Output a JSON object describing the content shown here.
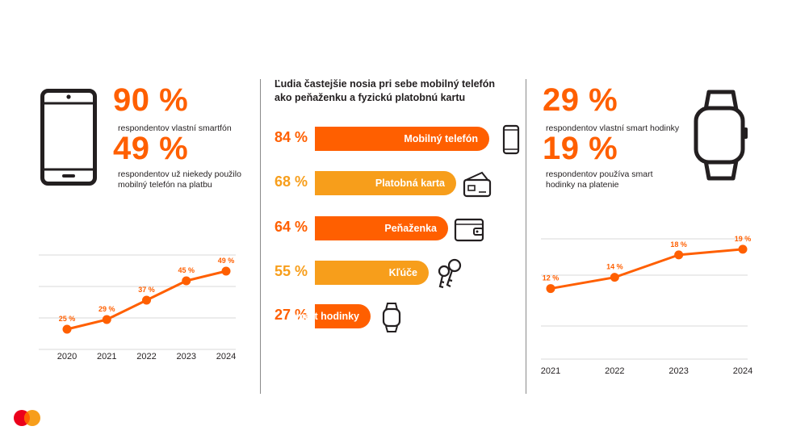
{
  "colors": {
    "orange_dark": "#ff5f00",
    "orange_light": "#f79e1b",
    "mc_red": "#eb001b",
    "text": "#231f20",
    "grid": "#d9d9d9"
  },
  "left": {
    "icon": "smartphone-icon",
    "stat1": {
      "value": "90 %",
      "caption": "respondentov vlastní smartfón"
    },
    "stat2": {
      "value": "49 %",
      "caption_line1": "respondentov už niekedy použilo",
      "caption_line2": "mobilný telefón na platbu"
    }
  },
  "middle": {
    "title_line1": "Ľudia častejšie nosia pri sebe mobilný telefón",
    "title_line2": "ako peňaženku a fyzickú platobnú kartu",
    "bars": [
      {
        "pct": "84 %",
        "value": 84,
        "label": "Mobilný telefón",
        "color": "#ff5f00",
        "icon": "smartphone-icon"
      },
      {
        "pct": "68 %",
        "value": 68,
        "label": "Platobná karta",
        "color": "#f79e1b",
        "icon": "card-wallet-icon"
      },
      {
        "pct": "64 %",
        "value": 64,
        "label": "Peňaženka",
        "color": "#ff5f00",
        "icon": "wallet-icon"
      },
      {
        "pct": "55 %",
        "value": 55,
        "label": "Kľúče",
        "color": "#f79e1b",
        "icon": "keys-icon"
      },
      {
        "pct": "27 %",
        "value": 27,
        "label": "Smart hodinky",
        "color": "#ff5f00",
        "icon": "smartwatch-icon"
      }
    ]
  },
  "right": {
    "icon": "smartwatch-icon",
    "stat1": {
      "value": "29 %",
      "caption": "respondentov vlastní smart hodinky"
    },
    "stat2": {
      "value": "19 %",
      "caption_line1": "respondentov používa smart",
      "caption_line2": "hodinky na platenie"
    }
  },
  "chart_data": [
    {
      "type": "line",
      "categories": [
        "2020",
        "2021",
        "2022",
        "2023",
        "2024"
      ],
      "values": [
        25,
        29,
        37,
        45,
        49
      ],
      "data_labels": [
        "25 %",
        "29 %",
        "37 %",
        "45 %",
        "49 %"
      ],
      "ylim": [
        15,
        55
      ],
      "grid": true
    },
    {
      "type": "bar",
      "categories": [
        "Mobilný telefón",
        "Platobná karta",
        "Peňaženka",
        "Kľúče",
        "Smart hodinky"
      ],
      "values": [
        84,
        68,
        64,
        55,
        27
      ],
      "title": "Ľudia častejšie nosia pri sebe mobilný telefón ako peňaženku a fyzickú platobnú kartu"
    },
    {
      "type": "line",
      "categories": [
        "2021",
        "2022",
        "2023",
        "2024"
      ],
      "values": [
        12,
        14,
        18,
        19
      ],
      "data_labels": [
        "12 %",
        "14 %",
        "18 %",
        "19 %"
      ],
      "ylim": [
        0,
        21
      ],
      "grid": true
    }
  ]
}
